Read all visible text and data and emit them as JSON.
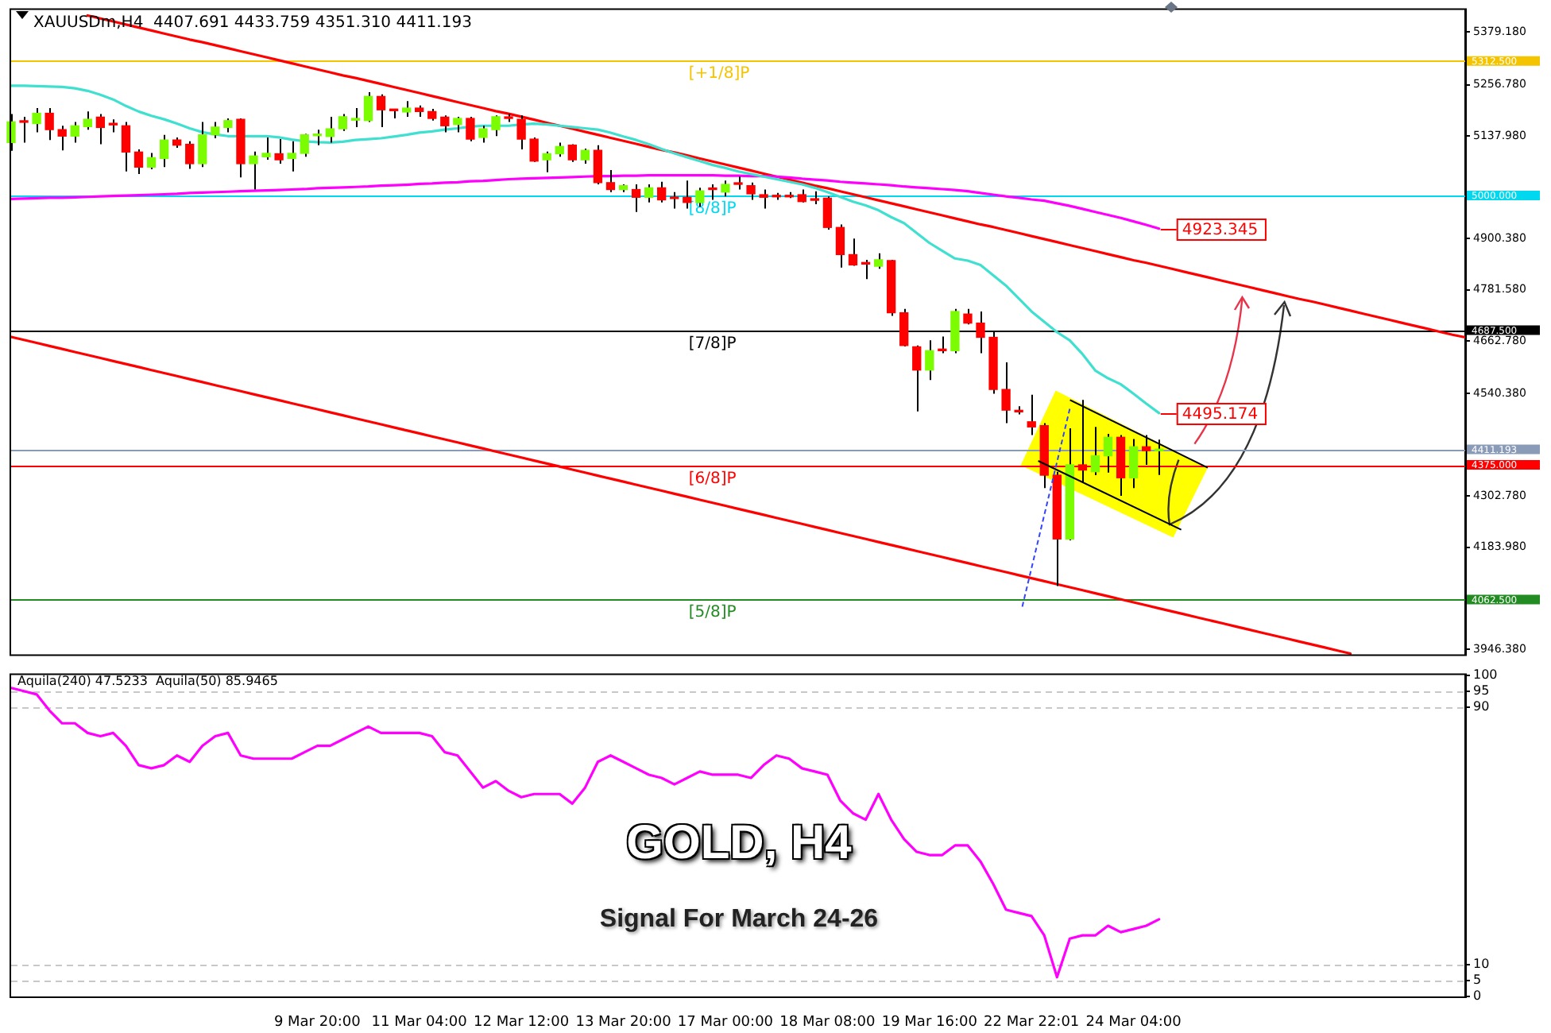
{
  "chart_data": [
    {
      "type": "candlestick",
      "title": "XAUUSDm,H4  4407.691 4433.759 4351.310 4411.193",
      "categories": [
        null,
        null,
        null,
        null,
        null,
        null,
        null,
        null,
        null,
        null,
        null,
        null,
        null,
        null,
        null,
        null,
        null,
        null,
        null,
        null,
        null,
        null,
        null,
        null,
        null,
        null,
        null,
        null,
        null,
        null,
        null,
        null,
        null,
        null,
        null,
        null,
        null,
        null,
        null,
        null,
        null,
        null,
        null,
        null,
        null,
        null,
        null,
        null,
        null,
        null,
        null,
        null,
        null,
        null,
        null,
        null,
        null,
        null,
        null,
        null,
        null,
        null,
        null,
        null,
        null,
        null,
        null,
        null,
        null,
        null,
        null,
        null,
        null,
        null,
        null,
        null,
        null,
        null,
        null,
        null,
        null,
        null,
        null,
        null,
        null,
        null,
        null,
        null,
        null,
        null,
        null,
        null,
        null,
        null,
        null,
        null,
        null,
        null,
        null,
        null,
        null,
        null,
        null,
        null,
        null,
        null,
        null,
        null,
        null,
        null,
        null,
        null,
        null,
        null,
        null
      ],
      "ohlc": [
        [
          5123,
          5189,
          5104,
          5171
        ],
        [
          5172,
          5183,
          5123,
          5170
        ],
        [
          5167,
          5203,
          5147,
          5191
        ],
        [
          5191,
          5203,
          5129,
          5153
        ],
        [
          5153,
          5162,
          5105,
          5138
        ],
        [
          5138,
          5171,
          5123,
          5162
        ],
        [
          5160,
          5195,
          5153,
          5177
        ],
        [
          5182,
          5189,
          5119,
          5158
        ],
        [
          5165,
          5177,
          5147,
          5164
        ],
        [
          5162,
          5171,
          5056,
          5101
        ],
        [
          5101,
          5107,
          5050,
          5066
        ],
        [
          5066,
          5099,
          5061,
          5088
        ],
        [
          5086,
          5141,
          5066,
          5129
        ],
        [
          5129,
          5135,
          5111,
          5117
        ],
        [
          5119,
          5126,
          5062,
          5074
        ],
        [
          5074,
          5171,
          5066,
          5141
        ],
        [
          5141,
          5171,
          5133,
          5159
        ],
        [
          5158,
          5179,
          5147,
          5174
        ],
        [
          5177,
          5179,
          5042,
          5074
        ],
        [
          5074,
          5102,
          5014,
          5092
        ],
        [
          5090,
          5135,
          5083,
          5098
        ],
        [
          5097,
          5131,
          5074,
          5083
        ],
        [
          5086,
          5126,
          5056,
          5098
        ],
        [
          5098,
          5143,
          5090,
          5141
        ],
        [
          5139,
          5153,
          5117,
          5140
        ],
        [
          5137,
          5183,
          5123,
          5155
        ],
        [
          5155,
          5189,
          5150,
          5183
        ],
        [
          5175,
          5203,
          5159,
          5179
        ],
        [
          5174,
          5240,
          5171,
          5230
        ],
        [
          5230,
          5235,
          5159,
          5199
        ],
        [
          5198,
          5201,
          5179,
          5197
        ],
        [
          5194,
          5219,
          5183,
          5203
        ],
        [
          5203,
          5209,
          5183,
          5195
        ],
        [
          5195,
          5201,
          5174,
          5179
        ],
        [
          5182,
          5186,
          5147,
          5162
        ],
        [
          5165,
          5183,
          5147,
          5179
        ],
        [
          5179,
          5183,
          5126,
          5131
        ],
        [
          5135,
          5162,
          5123,
          5155
        ],
        [
          5153,
          5186,
          5138,
          5183
        ],
        [
          5180,
          5189,
          5171,
          5179
        ],
        [
          5177,
          5186,
          5107,
          5131
        ],
        [
          5131,
          5135,
          5078,
          5080
        ],
        [
          5083,
          5102,
          5054,
          5097
        ],
        [
          5097,
          5123,
          5090,
          5114
        ],
        [
          5117,
          5119,
          5078,
          5083
        ],
        [
          5083,
          5109,
          5074,
          5105
        ],
        [
          5105,
          5117,
          5026,
          5030
        ],
        [
          5030,
          5059,
          5008,
          5014
        ],
        [
          5014,
          5026,
          5008,
          5023
        ],
        [
          5014,
          5026,
          4962,
          4996
        ],
        [
          4996,
          5026,
          4984,
          5018
        ],
        [
          5018,
          5032,
          4984,
          4990
        ],
        [
          4994,
          5008,
          4970,
          4993
        ],
        [
          4996,
          5035,
          4970,
          4984
        ],
        [
          4984,
          5018,
          4974,
          5011
        ],
        [
          5016,
          5026,
          4990,
          5014
        ],
        [
          5008,
          5035,
          4998,
          5026
        ],
        [
          5028,
          5044,
          5014,
          5026
        ],
        [
          5023,
          5030,
          4990,
          5004
        ],
        [
          5002,
          5014,
          4970,
          4996
        ],
        [
          4998,
          5006,
          4990,
          4997
        ],
        [
          4998,
          5008,
          4994,
          4997
        ],
        [
          5002,
          5014,
          4984,
          4986
        ],
        [
          4990,
          5010,
          4980,
          4989
        ],
        [
          4994,
          4998,
          4921,
          4926
        ],
        [
          4926,
          4933,
          4833,
          4863
        ],
        [
          4863,
          4900,
          4837,
          4839
        ],
        [
          4842,
          4851,
          4806,
          4841
        ],
        [
          4836,
          4866,
          4830,
          4851
        ],
        [
          4849,
          4851,
          4721,
          4728
        ],
        [
          4728,
          4737,
          4650,
          4652
        ],
        [
          4649,
          4652,
          4499,
          4595
        ],
        [
          4595,
          4664,
          4572,
          4640
        ],
        [
          4641,
          4673,
          4634,
          4640
        ],
        [
          4640,
          4737,
          4634,
          4731
        ],
        [
          4725,
          4737,
          4701,
          4704
        ],
        [
          4704,
          4731,
          4634,
          4671
        ],
        [
          4671,
          4683,
          4540,
          4550
        ],
        [
          4550,
          4613,
          4472,
          4502
        ],
        [
          4499,
          4511,
          4492,
          4498
        ],
        [
          4475,
          4538,
          4444,
          4463
        ],
        [
          4466,
          4472,
          4321,
          4351
        ],
        [
          4351,
          4359,
          4094,
          4203
        ],
        [
          4203,
          4460,
          4200,
          4375
        ],
        [
          4375,
          4526,
          4333,
          4363
        ],
        [
          4359,
          4463,
          4351,
          4396
        ],
        [
          4396,
          4447,
          4357,
          4439
        ],
        [
          4439,
          4444,
          4303,
          4345
        ],
        [
          4345,
          4435,
          4321,
          4417
        ],
        [
          4417,
          4444,
          4375,
          4408
        ],
        [
          4407.691,
          4433.759,
          4351.31,
          4411.193
        ],
        null,
        null,
        null,
        null,
        null,
        null,
        null,
        null,
        null,
        null,
        null,
        null,
        null,
        null,
        null,
        null,
        null,
        null,
        null,
        null,
        null,
        null,
        null,
        null
      ],
      "colors": [
        "#7cfc00",
        "#ff0000",
        "#7cfc00",
        "#ff0000",
        "#ff0000",
        "#7cfc00",
        "#7cfc00",
        "#ff0000",
        "#ff0000",
        "#ff0000",
        "#ff0000",
        "#7cfc00",
        "#7cfc00",
        "#ff0000",
        "#ff0000",
        "#7cfc00",
        "#7cfc00",
        "#7cfc00",
        "#ff0000",
        "#7cfc00",
        "#7cfc00",
        "#ff0000",
        "#7cfc00",
        "#7cfc00",
        "#7cfc00",
        "#7cfc00",
        "#7cfc00",
        "#7cfc00",
        "#7cfc00",
        "#ff0000",
        "#ff0000",
        "#7cfc00",
        "#ff0000",
        "#ff0000",
        "#ff0000",
        "#7cfc00",
        "#ff0000",
        "#7cfc00",
        "#7cfc00",
        "#ff0000",
        "#ff0000",
        "#ff0000",
        "#7cfc00",
        "#7cfc00",
        "#ff0000",
        "#7cfc00",
        "#ff0000",
        "#ff0000",
        "#7cfc00",
        "#ff0000",
        "#7cfc00",
        "#ff0000",
        "#ff0000",
        "#ff0000",
        "#7cfc00",
        "#ff0000",
        "#7cfc00",
        "#ff0000",
        "#ff0000",
        "#ff0000",
        "#ff0000",
        "#ff0000",
        "#ff0000",
        "#ff0000",
        "#ff0000",
        "#ff0000",
        "#ff0000",
        "#ff0000",
        "#7cfc00",
        "#ff0000",
        "#ff0000",
        "#ff0000",
        "#7cfc00",
        "#ff0000",
        "#7cfc00",
        "#ff0000",
        "#ff0000",
        "#ff0000",
        "#ff0000",
        "#ff0000",
        "#ff0000",
        "#ff0000",
        "#ff0000",
        "#7cfc00",
        "#ff0000",
        "#7cfc00",
        "#7cfc00",
        "#ff0000",
        "#7cfc00",
        "#ff0000",
        "#7cfc00",
        null,
        null,
        null,
        null,
        null,
        null,
        null,
        null,
        null,
        null,
        null,
        null,
        null,
        null,
        null,
        null,
        null,
        null,
        null,
        null,
        null,
        null,
        null,
        null
      ],
      "series": [
        {
          "type": "line",
          "color": "#40e0d0",
          "values": [
            5255,
            5255,
            5254,
            5253,
            5252,
            5249,
            5243,
            5234,
            5223,
            5208,
            5195,
            5185,
            5177,
            5167,
            5156,
            5147,
            5142,
            5138,
            5138,
            5138,
            5138,
            5135,
            5130,
            5126,
            5124,
            5123,
            5125,
            5129,
            5131,
            5133,
            5137,
            5141,
            5146,
            5149,
            5153,
            5156,
            5160,
            5162,
            5162,
            5162,
            5165,
            5167,
            5165,
            5162,
            5159,
            5156,
            5153,
            5146,
            5137,
            5129,
            5119,
            5108,
            5098,
            5089,
            5080,
            5071,
            5064,
            5056,
            5050,
            5044,
            5038,
            5032,
            5026,
            5018,
            5008,
            4997,
            4986,
            4977,
            4966,
            4950,
            4936,
            4913,
            4890,
            4872,
            4854,
            4849,
            4839,
            4815,
            4791,
            4761,
            4731,
            4707,
            4683,
            4664,
            4632,
            4594,
            4576,
            4562,
            4540,
            4517,
            4495.174,
            null,
            null,
            null,
            null,
            null,
            null,
            null,
            null,
            null,
            null,
            null,
            null,
            null,
            null,
            null,
            null,
            null,
            null,
            null,
            null,
            null,
            null,
            null,
            null
          ],
          "value_labels": [
            null,
            null,
            null,
            null,
            null,
            null,
            null,
            null,
            null,
            null,
            null,
            null,
            null,
            null,
            null,
            null,
            null,
            null,
            null,
            null,
            null,
            null,
            null,
            null,
            null,
            null,
            null,
            null,
            null,
            null,
            null,
            null,
            null,
            null,
            null,
            null,
            null,
            null,
            null,
            null,
            null,
            null,
            null,
            null,
            null,
            null,
            null,
            null,
            null,
            null,
            null,
            null,
            null,
            null,
            null,
            null,
            null,
            null,
            null,
            null,
            null,
            null,
            null,
            null,
            null,
            null,
            null,
            null,
            null,
            null,
            null,
            null,
            null,
            null,
            null,
            null,
            null,
            null,
            null,
            null,
            null,
            null,
            null,
            null,
            null,
            null,
            null,
            null,
            null,
            null,
            "4495.174",
            null,
            null,
            null,
            null,
            null,
            null,
            null,
            null,
            null,
            null,
            null,
            null,
            null,
            null,
            null,
            null,
            null,
            null,
            null,
            null,
            null,
            null,
            null,
            null
          ]
        },
        {
          "type": "line",
          "color": "#ff00ff",
          "values": [
            4992,
            4993,
            4994,
            4995,
            4995,
            4996,
            4997,
            4998,
            4999,
            5000,
            5001,
            5002,
            5003,
            5004,
            5006,
            5007,
            5008,
            5009,
            5010,
            5011,
            5012,
            5013,
            5014,
            5015,
            5017,
            5018,
            5019,
            5020,
            5021,
            5023,
            5024,
            5025,
            5027,
            5028,
            5030,
            5031,
            5033,
            5034,
            5036,
            5038,
            5039,
            5040,
            5041,
            5042,
            5043,
            5044,
            5045,
            5045,
            5046,
            5046,
            5047,
            5047,
            5047,
            5047,
            5047,
            5047,
            5046,
            5046,
            5045,
            5045,
            5044,
            5042,
            5039,
            5037,
            5035,
            5032,
            5030,
            5028,
            5026,
            5024,
            5021,
            5019,
            5017,
            5015,
            5013,
            5010,
            5006,
            5002,
            4998,
            4995,
            4991,
            4988,
            4982,
            4976,
            4969,
            4962,
            4955,
            4948,
            4940,
            4932,
            4923.345,
            null,
            null,
            null,
            null,
            null,
            null,
            null,
            null,
            null,
            null,
            null,
            null,
            null,
            null,
            null,
            null,
            null,
            null,
            null,
            null,
            null,
            null,
            null,
            null
          ],
          "value_labels": [
            null,
            null,
            null,
            null,
            null,
            null,
            null,
            null,
            null,
            null,
            null,
            null,
            null,
            null,
            null,
            null,
            null,
            null,
            null,
            null,
            null,
            null,
            null,
            null,
            null,
            null,
            null,
            null,
            null,
            null,
            null,
            null,
            null,
            null,
            null,
            null,
            null,
            null,
            null,
            null,
            null,
            null,
            null,
            null,
            null,
            null,
            null,
            null,
            null,
            null,
            null,
            null,
            null,
            null,
            null,
            null,
            null,
            null,
            null,
            null,
            null,
            null,
            null,
            null,
            null,
            null,
            null,
            null,
            null,
            null,
            null,
            null,
            null,
            null,
            null,
            null,
            null,
            null,
            null,
            null,
            null,
            null,
            null,
            null,
            null,
            null,
            null,
            null,
            null,
            null,
            "4923.345",
            null,
            null,
            null,
            null,
            null,
            null,
            null,
            null,
            null,
            null,
            null,
            null,
            null,
            null,
            null,
            null,
            null,
            null,
            null,
            null,
            null,
            null,
            null,
            null
          ]
        },
        {
          "type": "line",
          "color": "#ff0000",
          "values": [
            null,
            null,
            null,
            null,
            null,
            null,
            5418,
            5411,
            5404,
            5397,
            5390,
            5383,
            5376,
            5369,
            5362,
            5356,
            5349,
            5342,
            5335,
            5328,
            5321,
            5314,
            5307,
            5300,
            5293,
            5286,
            5279,
            5273,
            5266,
            5259,
            5252,
            5245,
            5238,
            5231,
            5224,
            5217,
            5210,
            5203,
            5196,
            5190,
            5183,
            5176,
            5169,
            5162,
            5155,
            5148,
            5141,
            5134,
            5127,
            5120,
            5113,
            5106,
            5100,
            5093,
            5086,
            5079,
            5072,
            5065,
            5058,
            5051,
            5044,
            5037,
            5030,
            5023,
            5017,
            5010,
            5003,
            4996,
            4989,
            4982,
            4975,
            4968,
            4961,
            4954,
            4947,
            4940,
            4933,
            4927,
            4920,
            4913,
            4906,
            4899,
            4892,
            4885,
            4878,
            4871,
            4864,
            4857,
            4850,
            4844,
            4837,
            4830,
            4823,
            4816,
            4809,
            4802,
            4795,
            4788,
            4781,
            4774,
            4767,
            4760,
            4754,
            4747,
            4740,
            4733,
            4726,
            4719,
            4712,
            4705,
            4698,
            4691,
            4684,
            4677,
            4671
          ]
        },
        {
          "type": "line",
          "color": "#ff0000",
          "values": [
            4672,
            4665,
            4658,
            4651,
            4644,
            4637,
            4630,
            4623,
            4616,
            4609,
            4602,
            4595,
            4588,
            4581,
            4574,
            4567,
            4560,
            4553,
            4546,
            4539,
            4532,
            4525,
            4518,
            4511,
            4504,
            4497,
            4490,
            4483,
            4476,
            4469,
            4462,
            4455,
            4448,
            4441,
            4434,
            4427,
            4420,
            4413,
            4406,
            4399,
            4392,
            4385,
            4378,
            4371,
            4364,
            4357,
            4350,
            4343,
            4336,
            4329,
            4322,
            4315,
            4308,
            4301,
            4294,
            4287,
            4280,
            4273,
            4266,
            4259,
            4252,
            4245,
            4238,
            4231,
            4224,
            4217,
            4210,
            4203,
            4196,
            4189,
            4182,
            4175,
            4168,
            4161,
            4154,
            4147,
            4140,
            4133,
            4126,
            4119,
            4112,
            4105,
            4098,
            4091,
            4084,
            4077,
            4070,
            4063,
            4056,
            4049,
            4042,
            4035,
            4028,
            4021,
            4014,
            4007,
            4000,
            3993,
            3986,
            3979,
            3972,
            3965,
            3958,
            3951,
            3944,
            3937,
            null,
            null,
            null,
            null,
            null,
            null,
            null,
            null,
            null
          ]
        }
      ],
      "ylim": [
        3935,
        5431
      ],
      "yticks": [
        {
          "value": 5379.18,
          "label": "5379.180"
        },
        {
          "value": 5256.78,
          "label": "5256.780"
        },
        {
          "value": 5137.98,
          "label": "5137.980"
        },
        {
          "value": 4900.38,
          "label": "4900.380"
        },
        {
          "value": 4781.58,
          "label": "4781.580"
        },
        {
          "value": 4662.78,
          "label": "4662.780"
        },
        {
          "value": 4540.38,
          "label": "4540.380"
        },
        {
          "value": 4302.78,
          "label": "4302.780"
        },
        {
          "value": 4183.98,
          "label": "4183.980"
        },
        {
          "value": 3946.38,
          "label": "3946.380"
        }
      ],
      "tick_labels": "y",
      "ref_lines": [
        {
          "axis": "y",
          "value": 5312.5,
          "label": "5312.500",
          "color": "#f5c400"
        },
        {
          "axis": "y",
          "value": 5000,
          "label": "5000.000",
          "color": "#00d8f0"
        },
        {
          "axis": "y",
          "value": 4687.5,
          "label": "4687.500",
          "color": "#000000"
        },
        {
          "axis": "y",
          "value": 4411.193,
          "label": "4411.193",
          "color": "#8a9bb8"
        },
        {
          "axis": "y",
          "value": 4375,
          "label": "4375.000",
          "color": "#ff0000"
        },
        {
          "axis": "y",
          "value": 4062.5,
          "label": "4062.500",
          "color": "#228b22"
        }
      ],
      "annotations": [
        {
          "text": "[+1/8]P",
          "y": 5312.5
        },
        {
          "text": "[8/8]P",
          "y": 5000
        },
        {
          "text": "[7/8]P",
          "y": 4687.5
        },
        {
          "text": "[6/8]P",
          "y": 4375
        },
        {
          "text": "[5/8]P",
          "y": 4062.5
        }
      ]
    },
    {
      "type": "line",
      "title": "Aquila(240) 47.5233  Aquila(50) 85.9465",
      "categories": [
        null,
        null,
        null,
        null,
        null,
        null,
        null,
        null,
        null,
        null,
        null,
        null,
        null,
        null,
        null,
        null,
        null,
        null,
        null,
        null,
        null,
        null,
        null,
        null,
        "9 Mar 20:00",
        null,
        null,
        null,
        null,
        null,
        null,
        null,
        "11 Mar 04:00",
        null,
        null,
        null,
        null,
        null,
        null,
        null,
        "12 Mar 12:00",
        null,
        null,
        null,
        null,
        null,
        null,
        null,
        "13 Mar 20:00",
        null,
        null,
        null,
        null,
        null,
        null,
        null,
        "17 Mar 00:00",
        null,
        null,
        null,
        null,
        null,
        null,
        null,
        "18 Mar 08:00",
        null,
        null,
        null,
        null,
        null,
        null,
        null,
        "19 Mar 16:00",
        null,
        null,
        null,
        null,
        null,
        null,
        null,
        "22 Mar 22:01",
        null,
        null,
        null,
        null,
        null,
        null,
        null,
        "24 Mar 04:00",
        null,
        null,
        null,
        null,
        null,
        null,
        null,
        null,
        null,
        null,
        null,
        null,
        null,
        null,
        null,
        null,
        null,
        null,
        null,
        null,
        null,
        null,
        null,
        null,
        null,
        null
      ],
      "series": [
        {
          "color": "#ff00ff",
          "values": [
            96,
            95,
            94,
            89,
            85,
            85,
            82,
            81,
            82,
            78,
            72,
            71,
            72,
            75,
            73,
            78,
            81,
            82,
            75,
            74,
            74,
            74,
            74,
            76,
            78,
            78,
            80,
            82,
            84,
            82,
            82,
            82,
            82,
            81,
            76,
            75,
            70,
            65,
            67,
            64,
            62,
            63,
            63,
            63,
            60,
            65,
            73,
            75,
            73,
            71,
            69,
            68,
            66,
            68,
            70,
            69,
            69,
            69,
            68,
            72,
            75,
            74,
            71,
            70,
            69,
            61,
            57,
            55,
            63,
            55,
            49,
            45,
            44,
            44,
            47,
            47,
            42,
            35,
            27,
            26,
            25,
            19,
            6,
            18,
            19,
            19,
            22,
            20,
            21,
            22,
            24,
            null,
            null,
            null,
            null,
            null,
            null,
            null,
            null,
            null,
            null,
            null,
            null,
            null,
            null,
            null,
            null,
            null,
            null,
            null,
            null,
            null,
            null,
            null,
            null
          ]
        }
      ],
      "ylim": [
        0,
        100
      ],
      "yticks": [
        0,
        5,
        10,
        90,
        95,
        100
      ],
      "ref_lines": [
        {
          "axis": "y",
          "value": 95,
          "color": "#c8c8c8",
          "line_style": "dashed"
        },
        {
          "axis": "y",
          "value": 90,
          "color": "#c8c8c8",
          "line_style": "dashed"
        },
        {
          "axis": "y",
          "value": 10,
          "color": "#c8c8c8",
          "line_style": "dashed"
        },
        {
          "axis": "y",
          "value": 5,
          "color": "#c8c8c8",
          "line_style": "dashed"
        }
      ],
      "annotations": [
        "GOLD, H4",
        "Signal For March 24-26"
      ]
    }
  ]
}
